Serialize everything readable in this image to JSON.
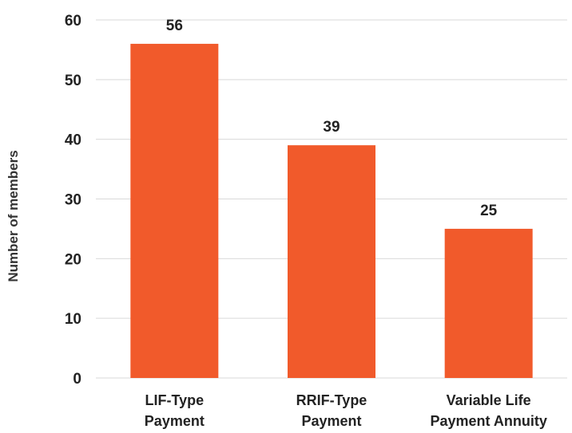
{
  "chart_data": {
    "type": "bar",
    "categories": [
      [
        "LIF-Type",
        "Payment"
      ],
      [
        "RRIF-Type",
        "Payment"
      ],
      [
        "Variable Life",
        "Payment Annuity"
      ]
    ],
    "values": [
      56,
      39,
      25
    ],
    "data_labels": [
      "56",
      "39",
      "25"
    ],
    "title": "",
    "xlabel": "",
    "ylabel": "Number of members",
    "ylim": [
      0,
      60
    ],
    "yticks": [
      0,
      10,
      20,
      30,
      40,
      50,
      60
    ],
    "ytick_labels": [
      "0",
      "10",
      "20",
      "30",
      "40",
      "50",
      "60"
    ],
    "grid": true,
    "bar_color": "#F15A2B"
  }
}
